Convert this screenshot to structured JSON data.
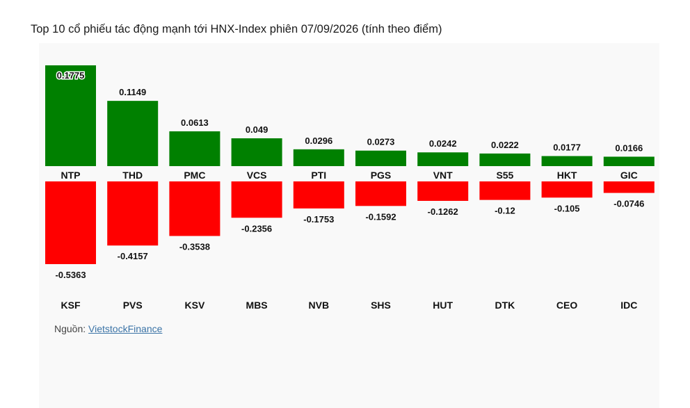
{
  "title": "Top 10 cổ phiếu tác động mạnh tới HNX-Index phiên 07/09/2026 (tính theo điểm)",
  "source": {
    "prefix": "Nguồn: ",
    "link_text": "VietstockFinance"
  },
  "colors": {
    "positive": "#008000",
    "negative": "#ff0000"
  },
  "chart_data": {
    "type": "bar",
    "title": "Top 10 cổ phiếu tác động mạnh tới HNX-Index phiên 07/09/2026 (tính theo điểm)",
    "xlabel": "",
    "ylabel": "",
    "grid": false,
    "legend": "none",
    "series": [
      {
        "categories": [
          "NTP",
          "THD",
          "PMC",
          "VCS",
          "PTI",
          "PGS",
          "VNT",
          "S55",
          "HKT",
          "GIC"
        ],
        "values": [
          0.1775,
          0.1149,
          0.0613,
          0.049,
          0.0296,
          0.0273,
          0.0242,
          0.0222,
          0.0177,
          0.0166
        ],
        "labels": [
          "0.1775",
          "0.1149",
          "0.0613",
          "0.049",
          "0.0296",
          "0.0273",
          "0.0242",
          "0.0222",
          "0.0177",
          "0.0166"
        ]
      },
      {
        "categories": [
          "KSF",
          "PVS",
          "KSV",
          "MBS",
          "NVB",
          "SHS",
          "HUT",
          "DTK",
          "CEO",
          "IDC"
        ],
        "values": [
          -0.5363,
          -0.4157,
          -0.3538,
          -0.2356,
          -0.1753,
          -0.1592,
          -0.1262,
          -0.12,
          -0.105,
          -0.0746
        ],
        "labels": [
          "-0.5363",
          "-0.4157",
          "-0.3538",
          "-0.2356",
          "-0.1753",
          "-0.1592",
          "-0.1262",
          "-0.12",
          "-0.105",
          "-0.0746"
        ]
      }
    ]
  }
}
